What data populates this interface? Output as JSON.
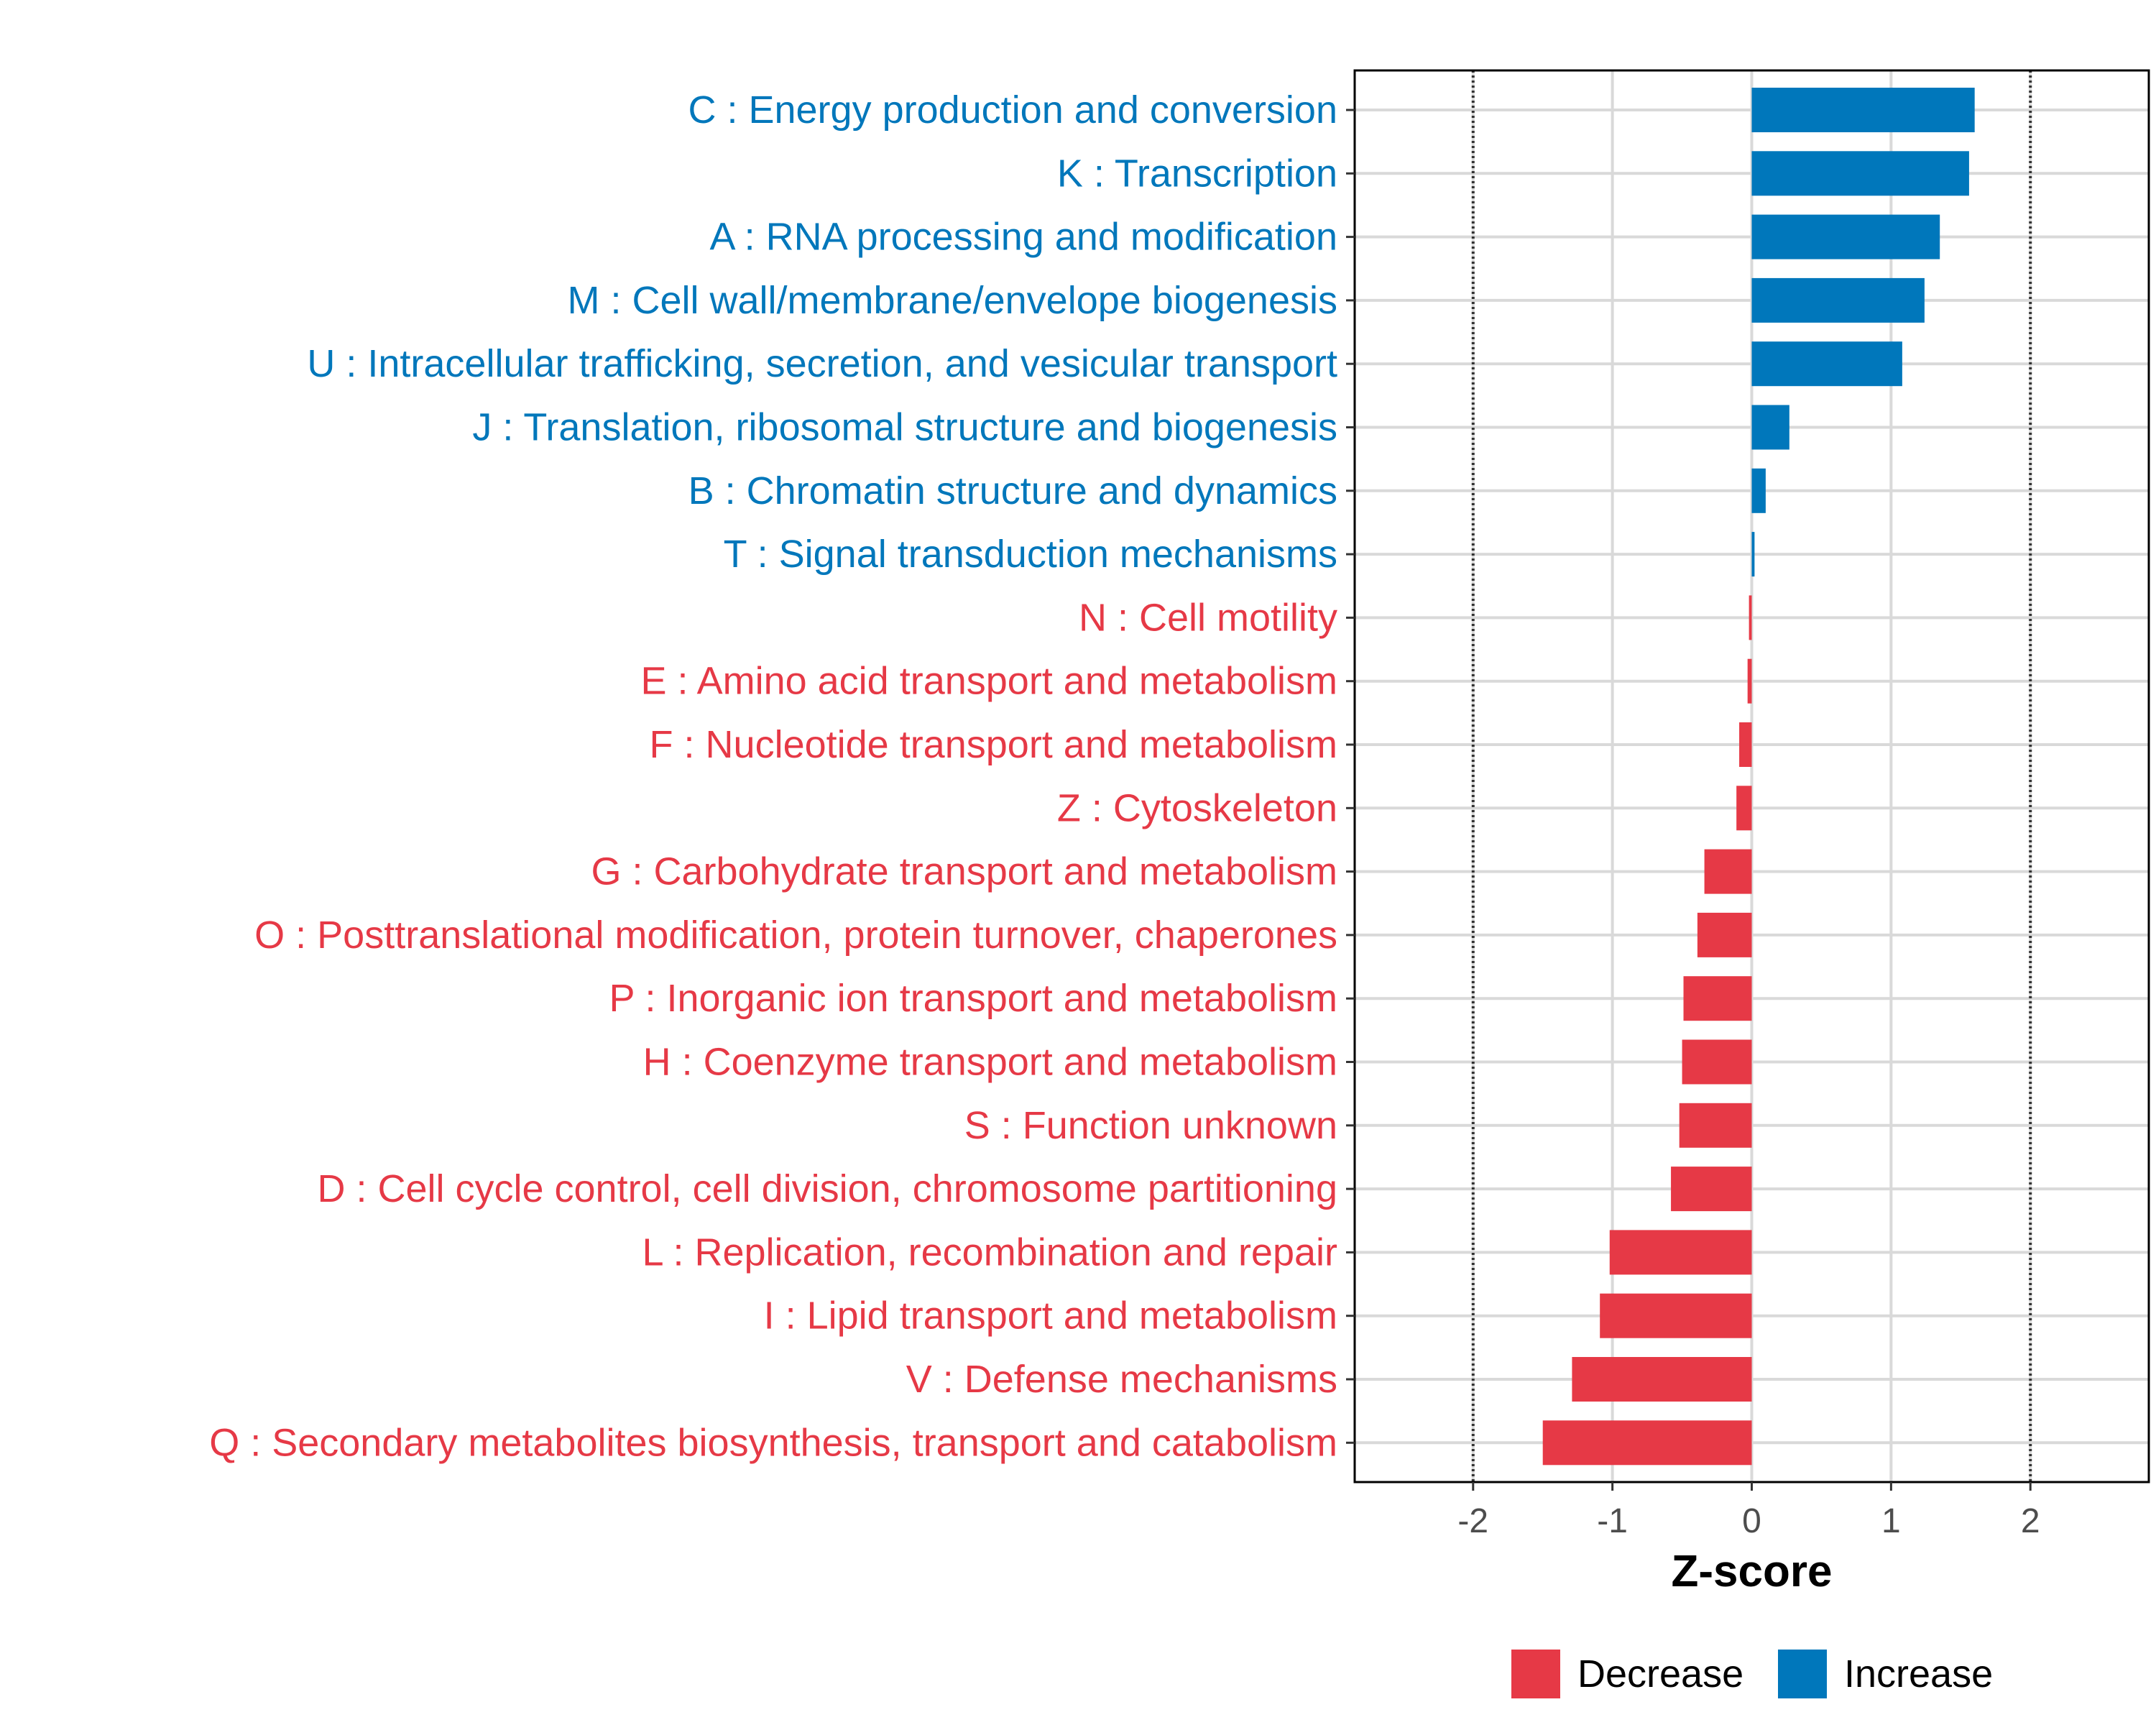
{
  "chart_data": {
    "type": "bar",
    "orientation": "horizontal",
    "title": "",
    "xlabel": "Z-score",
    "ylabel": "",
    "xlim": [
      -2.85,
      2.85
    ],
    "xticks": [
      -2,
      -1,
      0,
      1,
      2
    ],
    "xtick_labels": [
      "-2",
      "-1",
      "0",
      "1",
      "2"
    ],
    "reference_lines": [
      -2,
      2
    ],
    "grid": true,
    "legend_position": "bottom",
    "categories": [
      "C : Energy production and conversion",
      "K : Transcription",
      "A : RNA processing and modification",
      "M : Cell wall/membrane/envelope biogenesis",
      "U : Intracellular trafficking, secretion, and vesicular transport",
      "J : Translation, ribosomal structure and biogenesis",
      "B : Chromatin structure and dynamics",
      "T : Signal transduction mechanisms",
      "N : Cell motility",
      "E : Amino acid transport and metabolism",
      "F : Nucleotide transport and metabolism",
      "Z : Cytoskeleton",
      "G : Carbohydrate transport and metabolism",
      "O : Posttranslational modification, protein turnover, chaperones",
      "P : Inorganic ion transport and metabolism",
      "H : Coenzyme transport and metabolism",
      "S : Function unknown",
      "D : Cell cycle control, cell division, chromosome partitioning",
      "L : Replication, recombination and repair",
      "I : Lipid transport and metabolism",
      "V : Defense mechanisms",
      "Q : Secondary metabolites biosynthesis, transport and catabolism"
    ],
    "values": [
      1.6,
      1.56,
      1.35,
      1.24,
      1.08,
      0.27,
      0.1,
      0.02,
      -0.02,
      -0.03,
      -0.09,
      -0.11,
      -0.34,
      -0.39,
      -0.49,
      -0.5,
      -0.52,
      -0.58,
      -1.02,
      -1.09,
      -1.29,
      -1.5
    ],
    "groups": [
      "Increase",
      "Increase",
      "Increase",
      "Increase",
      "Increase",
      "Increase",
      "Increase",
      "Increase",
      "Decrease",
      "Decrease",
      "Decrease",
      "Decrease",
      "Decrease",
      "Decrease",
      "Decrease",
      "Decrease",
      "Decrease",
      "Decrease",
      "Decrease",
      "Decrease",
      "Decrease",
      "Decrease"
    ],
    "legend": [
      {
        "name": "Decrease",
        "color": "#e63946"
      },
      {
        "name": "Increase",
        "color": "#0077bb"
      }
    ],
    "colors": {
      "Increase": "#0077bb",
      "Decrease": "#e63946",
      "grid": "#d9d9d9",
      "reference_line": "#333333",
      "frame": "#000000"
    }
  }
}
